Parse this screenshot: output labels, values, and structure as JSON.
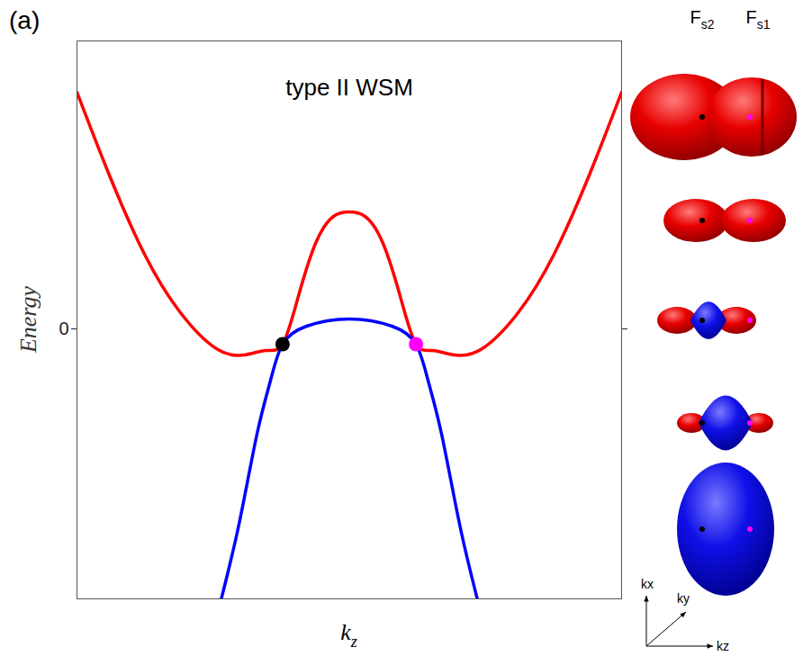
{
  "chart_data": {
    "type": "line",
    "panel_label": "(a)",
    "title": "type II WSM",
    "xlabel": {
      "text": "k",
      "subscript": "z"
    },
    "ylabel": "Energy",
    "xlim": [
      -1,
      1
    ],
    "ylim": [
      -3,
      3.2
    ],
    "xticks": [],
    "yticks": [
      0
    ],
    "tick_labels": "y",
    "series": [
      {
        "type": "line",
        "color": "#ff0000",
        "x": [
          -1.0,
          -0.884,
          -0.752,
          -0.62,
          -0.488,
          -0.388,
          -0.306,
          -0.245,
          -0.19,
          -0.124,
          -0.058,
          0.0,
          0.058,
          0.124,
          0.19,
          0.245,
          0.306,
          0.388,
          0.488,
          0.62,
          0.752,
          0.884,
          1.0
        ],
        "values": [
          2.63,
          1.73,
          0.83,
          0.18,
          -0.22,
          -0.29,
          -0.24,
          -0.17,
          0.33,
          0.95,
          1.25,
          1.3,
          1.25,
          0.95,
          0.33,
          -0.17,
          -0.24,
          -0.29,
          -0.22,
          0.18,
          0.83,
          1.73,
          2.63
        ]
      },
      {
        "type": "line",
        "color": "#0000ff",
        "x": [
          -0.47,
          -0.405,
          -0.339,
          -0.289,
          -0.245,
          -0.157,
          0.0,
          0.157,
          0.245,
          0.289,
          0.339,
          0.405,
          0.47
        ],
        "values": [
          -3.0,
          -2.17,
          -1.17,
          -0.57,
          -0.17,
          0.03,
          0.11,
          0.03,
          -0.17,
          -0.57,
          -1.17,
          -2.17,
          -3.0
        ]
      },
      {
        "type": "scatter",
        "marker": "circle",
        "color": "#000000",
        "x": [
          -0.245
        ],
        "values": [
          -0.17
        ]
      },
      {
        "type": "scatter",
        "marker": "circle",
        "color": "#ff00ff",
        "x": [
          0.245
        ],
        "values": [
          -0.17
        ]
      }
    ],
    "fermi_surfaces": {
      "labels": [
        {
          "text": "F",
          "subscript": "s2"
        },
        {
          "text": "F",
          "subscript": "s1"
        }
      ],
      "axes": [
        "kx",
        "ky",
        "kz"
      ]
    }
  }
}
